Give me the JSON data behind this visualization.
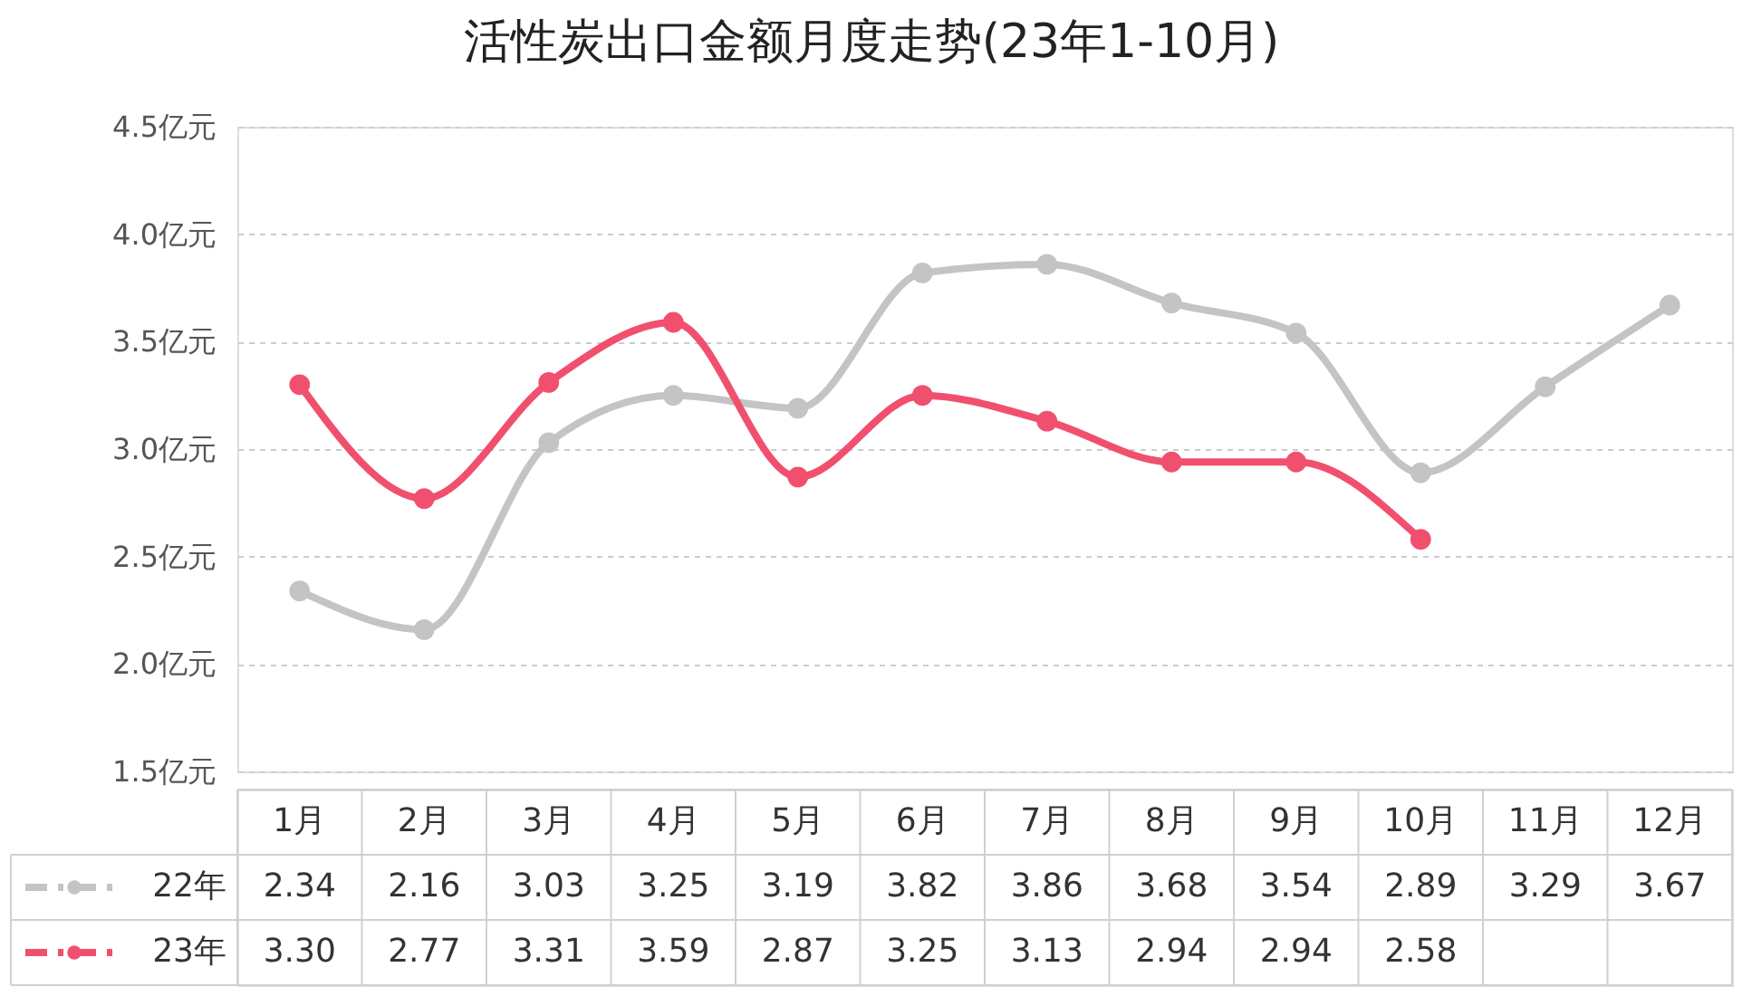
{
  "chart_data": {
    "type": "line",
    "title": "活性炭出口金额月度走势(23年1-10月)",
    "categories": [
      "1月",
      "2月",
      "3月",
      "4月",
      "5月",
      "6月",
      "7月",
      "8月",
      "9月",
      "10月",
      "11月",
      "12月"
    ],
    "series": [
      {
        "name": "22年",
        "color": "#c4c4c4",
        "values": [
          2.34,
          2.16,
          3.03,
          3.25,
          3.19,
          3.82,
          3.86,
          3.68,
          3.54,
          2.89,
          3.29,
          3.67
        ],
        "value_labels": [
          "2.34",
          "2.16",
          "3.03",
          "3.25",
          "3.19",
          "3.82",
          "3.86",
          "3.68",
          "3.54",
          "2.89",
          "3.29",
          "3.67"
        ]
      },
      {
        "name": "23年",
        "color": "#f0506e",
        "values": [
          3.3,
          2.77,
          3.31,
          3.59,
          2.87,
          3.25,
          3.13,
          2.94,
          2.94,
          2.58,
          null,
          null
        ],
        "value_labels": [
          "3.30",
          "2.77",
          "3.31",
          "3.59",
          "2.87",
          "3.25",
          "3.13",
          "2.94",
          "2.94",
          "2.58",
          null,
          null
        ]
      }
    ],
    "ylim": [
      1.5,
      4.5
    ],
    "yticks": [
      {
        "value": 1.5,
        "label": "1.5亿元"
      },
      {
        "value": 2.0,
        "label": "2.0亿元"
      },
      {
        "value": 2.5,
        "label": "2.5亿元"
      },
      {
        "value": 3.0,
        "label": "3.0亿元"
      },
      {
        "value": 3.5,
        "label": "3.5亿元"
      },
      {
        "value": 4.0,
        "label": "4.0亿元"
      },
      {
        "value": 4.5,
        "label": "4.5亿元"
      }
    ],
    "grid": "y",
    "legend": "bottom left",
    "marker": "circle",
    "line_style": "solid"
  }
}
